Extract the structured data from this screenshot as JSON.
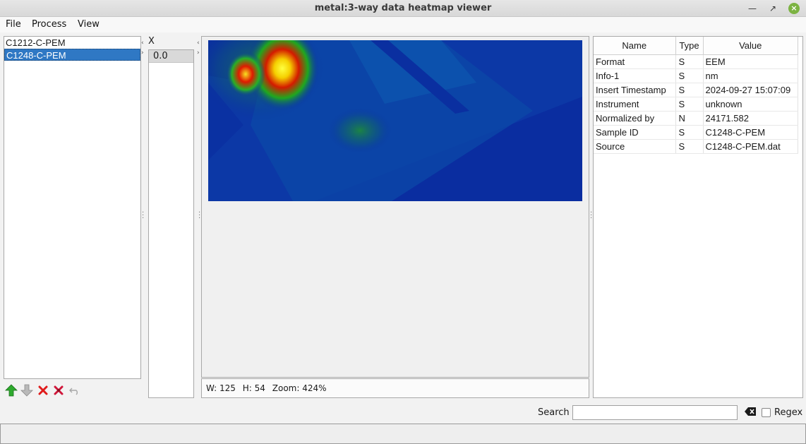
{
  "window": {
    "title": "metal:3-way data heatmap viewer"
  },
  "menu": {
    "file": "File",
    "process": "Process",
    "view": "View"
  },
  "files": [
    "C1212-C-PEM",
    "C1248-C-PEM"
  ],
  "selected_file": "C1248-C-PEM",
  "x_axis": {
    "header": "X",
    "values": [
      "0.0"
    ]
  },
  "image_info": {
    "w": "W: 125",
    "h": "H: 54",
    "zoom": "Zoom: 424%"
  },
  "properties": {
    "headers": [
      "Name",
      "Type",
      "Value"
    ],
    "rows": [
      [
        "Format",
        "S",
        "EEM"
      ],
      [
        "Info-1",
        "S",
        "nm"
      ],
      [
        "Insert Timestamp",
        "S",
        "2024-09-27 15:07:09"
      ],
      [
        "Instrument",
        "S",
        "unknown"
      ],
      [
        "Normalized by",
        "N",
        "24171.582"
      ],
      [
        "Sample ID",
        "S",
        "C1248-C-PEM"
      ],
      [
        "Source",
        "S",
        "C1248-C-PEM.dat"
      ]
    ]
  },
  "search": {
    "label": "Search",
    "value": "",
    "regex_label": "Regex"
  },
  "colors": {
    "selection": "#2f78c4",
    "heat_low": "#0a2fa0",
    "heat_high": "#f5ff3a"
  },
  "icons": [
    "move-up-icon",
    "move-down-icon",
    "delete-icon",
    "delete-all-icon",
    "undo-icon",
    "clear-search-icon"
  ]
}
